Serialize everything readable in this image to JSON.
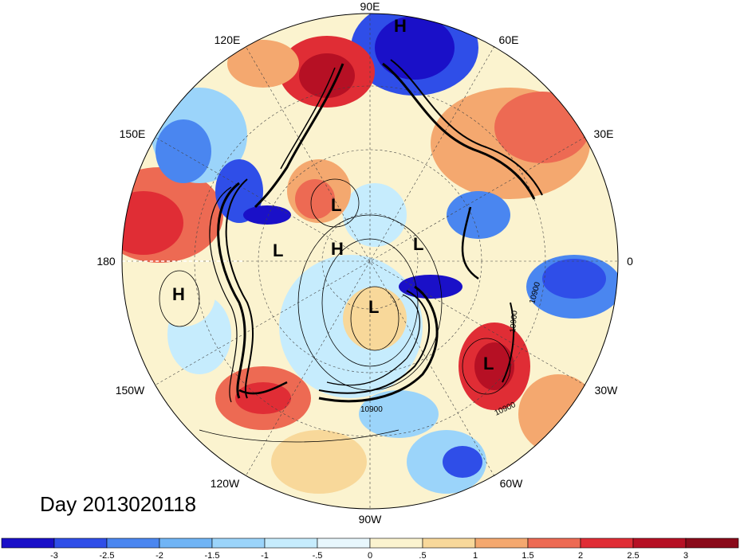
{
  "map": {
    "longitude_labels": [
      "90E",
      "60E",
      "30E",
      "0",
      "30W",
      "60W",
      "90W",
      "120W",
      "150W",
      "180",
      "150E",
      "120E"
    ],
    "pressure_centers": [
      {
        "label": "H",
        "name": "high-center-north"
      },
      {
        "label": "L",
        "name": "low-center-upper"
      },
      {
        "label": "L",
        "name": "low-center-left"
      },
      {
        "label": "H",
        "name": "high-center-mid"
      },
      {
        "label": "L",
        "name": "low-center-right"
      },
      {
        "label": "H",
        "name": "high-center-west"
      },
      {
        "label": "L",
        "name": "low-center-southeast"
      },
      {
        "label": "L",
        "name": "low-center-canada"
      }
    ],
    "contour_labels": [
      "10900",
      "10900",
      "10900",
      "10900"
    ]
  },
  "title": {
    "text": "Day 2013020118"
  },
  "colorbar": {
    "ticks": [
      "-3",
      "-2.5",
      "-2",
      "-1.5",
      "-1",
      "-.5",
      "0",
      ".5",
      "1",
      "1.5",
      "2",
      "2.5",
      "3"
    ],
    "colors": [
      "#1a10c8",
      "#2f4ee8",
      "#4a86f0",
      "#70b4f5",
      "#9bd4fa",
      "#c6ecfd",
      "#e8f7fd",
      "#fbf3cf",
      "#f8d89a",
      "#f4a86f",
      "#ed6a53",
      "#e02d35",
      "#b61024",
      "#8a0a1a"
    ]
  }
}
